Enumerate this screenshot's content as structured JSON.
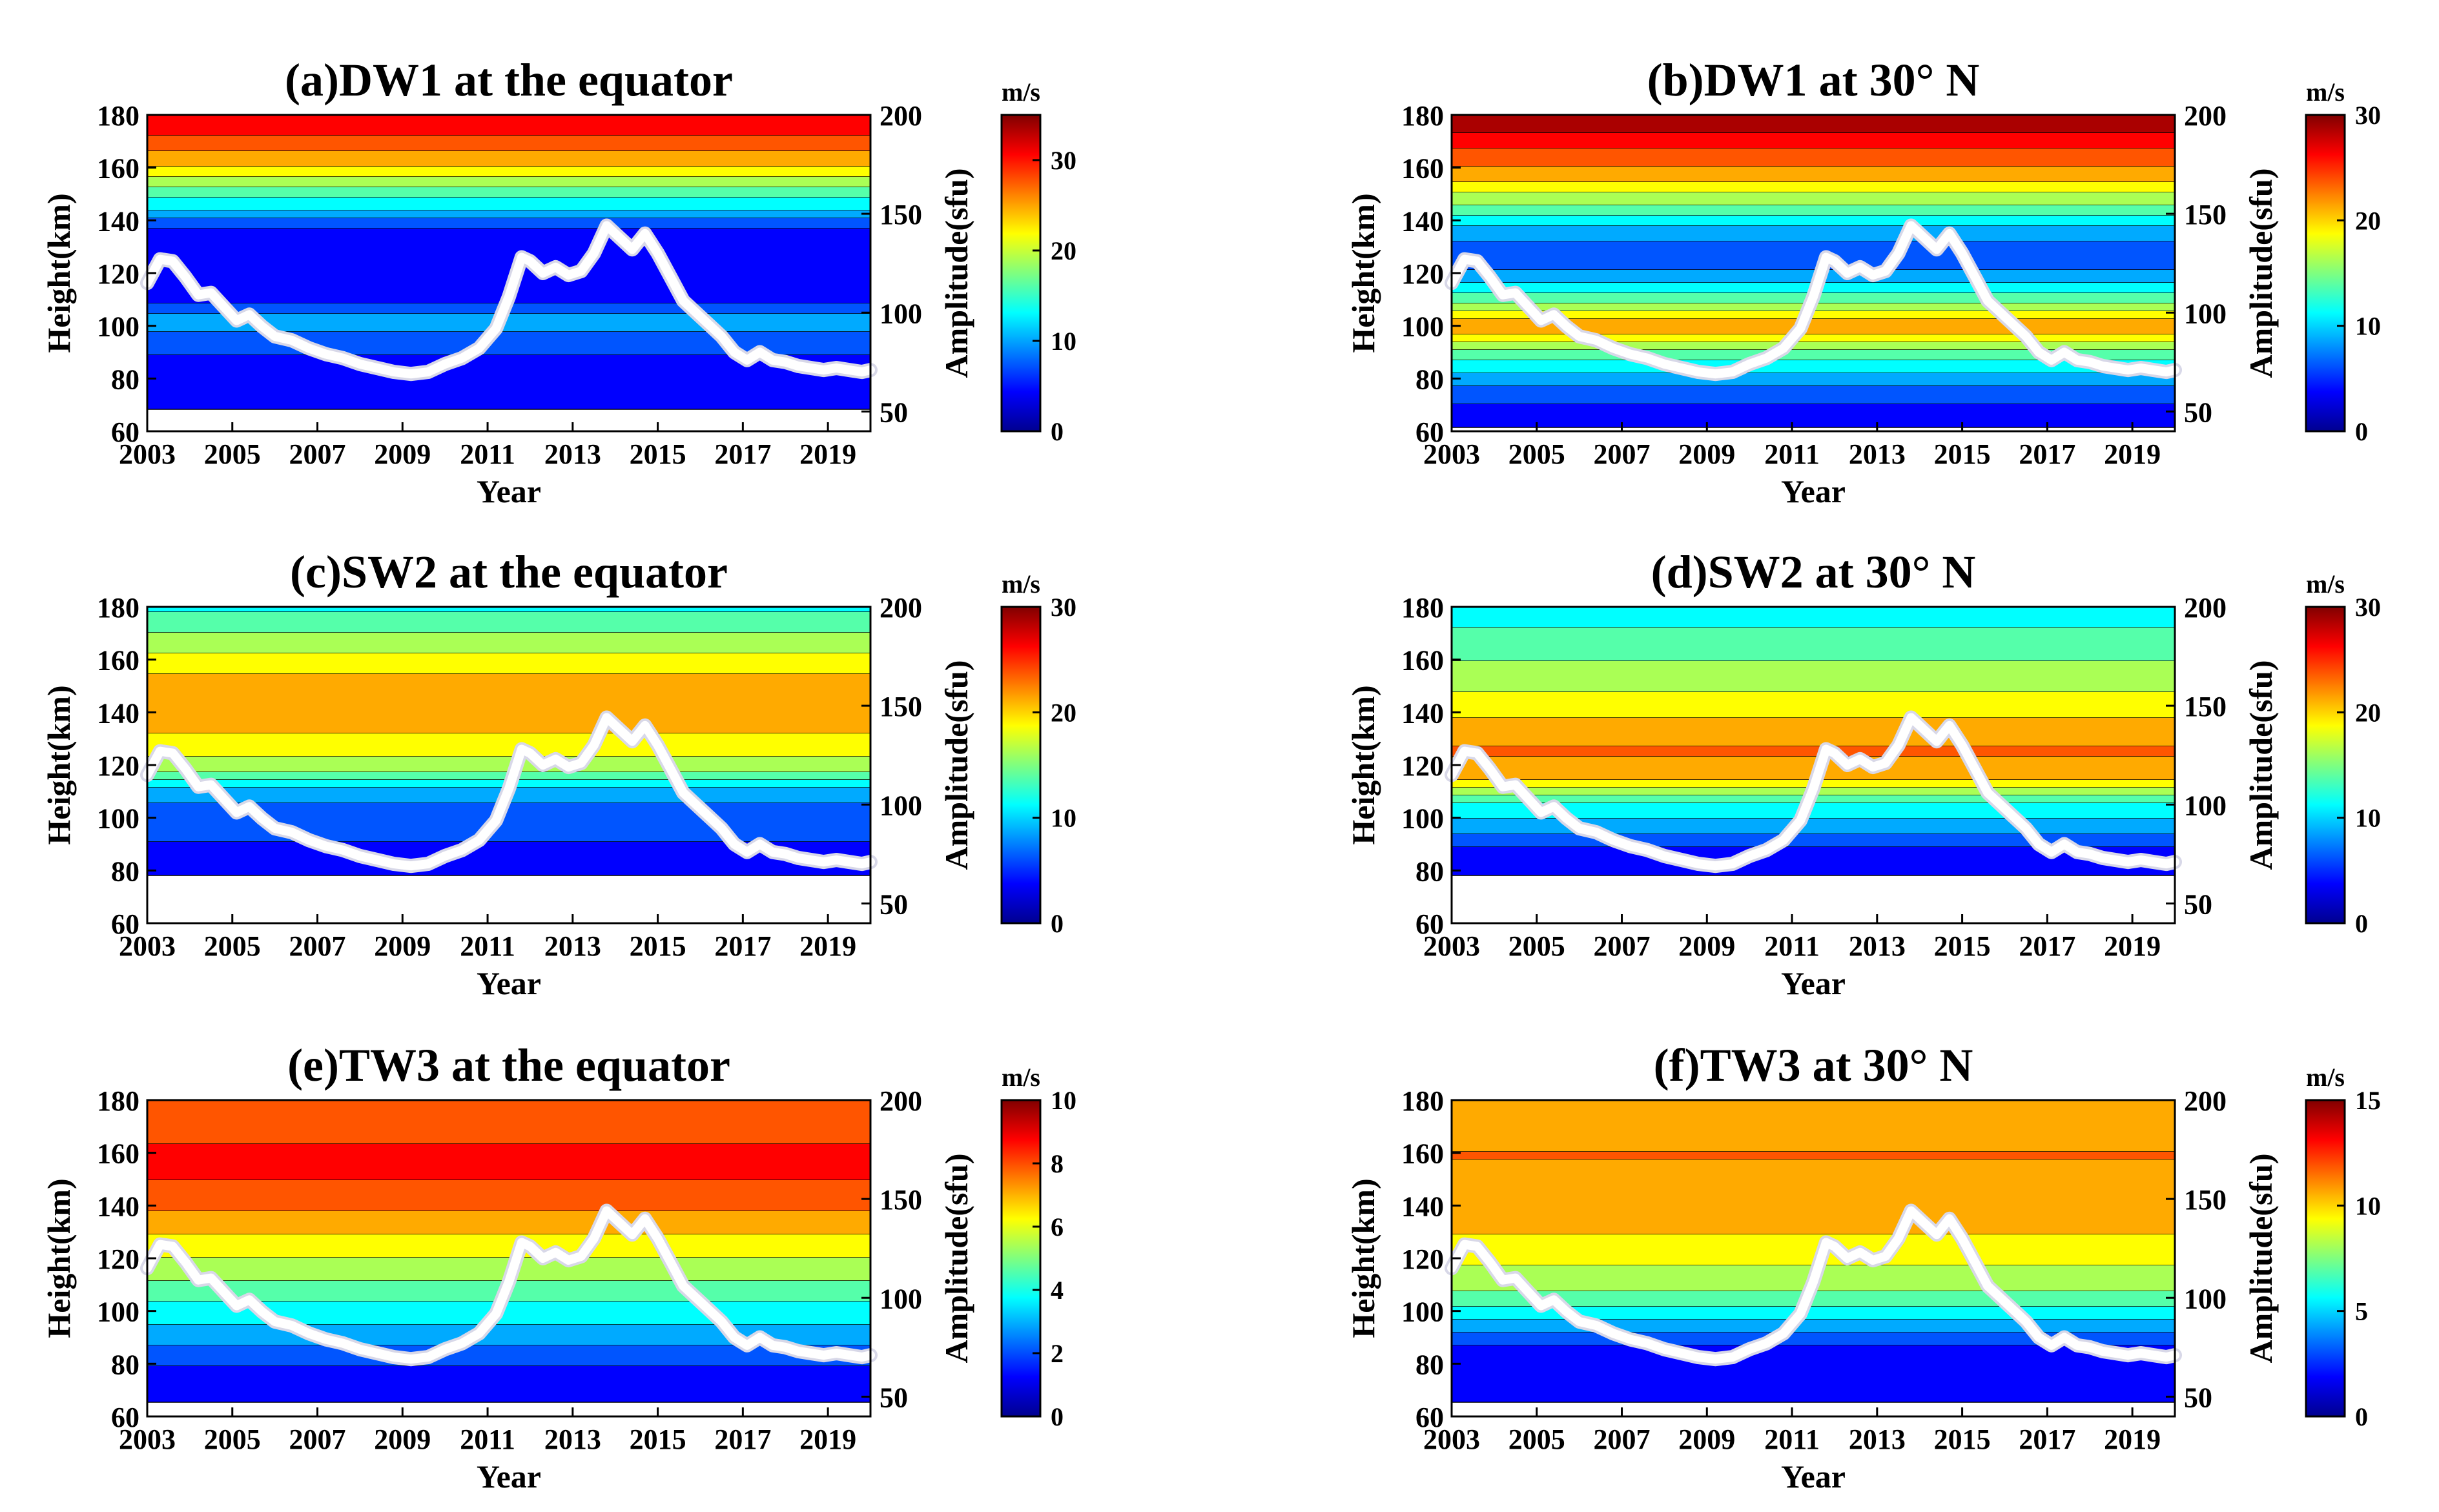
{
  "figure": {
    "year_ticks": [
      2003,
      2005,
      2007,
      2009,
      2011,
      2013,
      2015,
      2017,
      2019
    ],
    "height_ticks": [
      60,
      80,
      100,
      120,
      140,
      160,
      180
    ],
    "sfu_ticks": [
      50,
      100,
      150,
      200
    ],
    "xlabel": "Year",
    "ylabel": "Height(km)",
    "y2label": "Amplitude(sfu)",
    "cbar_unit": "m/s"
  },
  "chart_data": [
    {
      "type": "heatmap",
      "title": "(a)DW1 at the equator",
      "xlim": [
        2003,
        2020
      ],
      "ylim": [
        60,
        180
      ],
      "y2lim": [
        40,
        200
      ],
      "clim": [
        0,
        35
      ],
      "colorbar_ticks": [
        0,
        10,
        20,
        30
      ],
      "colormap": "jet",
      "profile": [
        [
          60,
          2
        ],
        [
          80,
          4
        ],
        [
          95,
          7
        ],
        [
          102,
          11
        ],
        [
          110,
          5
        ],
        [
          125,
          4
        ],
        [
          138,
          6
        ],
        [
          145,
          12
        ],
        [
          155,
          19
        ],
        [
          162,
          24
        ],
        [
          170,
          28
        ],
        [
          180,
          32
        ]
      ],
      "overlay": {
        "name": "F10.7 solar flux",
        "color": "#ffffff"
      }
    },
    {
      "type": "heatmap",
      "title": "(b)DW1 at 30° N",
      "xlim": [
        2003,
        2020
      ],
      "ylim": [
        60,
        180
      ],
      "y2lim": [
        40,
        200
      ],
      "clim": [
        0,
        30
      ],
      "colorbar_ticks": [
        0,
        10,
        20,
        30
      ],
      "colormap": "jet",
      "profile": [
        [
          60,
          2
        ],
        [
          75,
          6
        ],
        [
          90,
          14
        ],
        [
          100,
          22
        ],
        [
          108,
          16
        ],
        [
          118,
          9
        ],
        [
          125,
          6
        ],
        [
          135,
          8
        ],
        [
          145,
          14
        ],
        [
          155,
          20
        ],
        [
          165,
          24
        ],
        [
          172,
          27
        ],
        [
          180,
          29
        ]
      ],
      "overlay": {
        "name": "F10.7 solar flux",
        "color": "#ffffff"
      }
    },
    {
      "type": "heatmap",
      "title": "(c)SW2 at the equator",
      "xlim": [
        2003,
        2020
      ],
      "ylim": [
        60,
        180
      ],
      "y2lim": [
        40,
        200
      ],
      "clim": [
        0,
        30
      ],
      "colorbar_ticks": [
        0,
        10,
        20,
        30
      ],
      "colormap": "jet",
      "profile": [
        [
          60,
          1
        ],
        [
          85,
          3
        ],
        [
          95,
          6
        ],
        [
          110,
          8
        ],
        [
          118,
          15
        ],
        [
          125,
          18
        ],
        [
          140,
          22
        ],
        [
          155,
          20
        ],
        [
          165,
          17
        ],
        [
          180,
          12
        ]
      ],
      "overlay": {
        "name": "F10.7 solar flux",
        "color": "#ffffff"
      }
    },
    {
      "type": "heatmap",
      "title": "(d)SW2 at 30° N",
      "xlim": [
        2003,
        2020
      ],
      "ylim": [
        60,
        180
      ],
      "y2lim": [
        40,
        200
      ],
      "clim": [
        0,
        30
      ],
      "colorbar_ticks": [
        0,
        10,
        20,
        30
      ],
      "colormap": "jet",
      "profile": [
        [
          60,
          1
        ],
        [
          85,
          3
        ],
        [
          95,
          8
        ],
        [
          105,
          12
        ],
        [
          115,
          20
        ],
        [
          125,
          23
        ],
        [
          135,
          21
        ],
        [
          150,
          17
        ],
        [
          165,
          14
        ],
        [
          180,
          11
        ]
      ],
      "overlay": {
        "name": "F10.7 solar flux",
        "color": "#ffffff"
      }
    },
    {
      "type": "heatmap",
      "title": "(e)TW3 at the equator",
      "xlim": [
        2003,
        2020
      ],
      "ylim": [
        60,
        180
      ],
      "y2lim": [
        40,
        200
      ],
      "clim": [
        0,
        10
      ],
      "colorbar_ticks": [
        0,
        2,
        4,
        6,
        8,
        10
      ],
      "colormap": "jet",
      "profile": [
        [
          60,
          0.6
        ],
        [
          75,
          1.2
        ],
        [
          85,
          2.2
        ],
        [
          95,
          3.3
        ],
        [
          105,
          4.3
        ],
        [
          115,
          5.3
        ],
        [
          125,
          6.3
        ],
        [
          135,
          7.2
        ],
        [
          145,
          8.1
        ],
        [
          155,
          8.6
        ],
        [
          165,
          8.3
        ],
        [
          180,
          7.8
        ]
      ],
      "overlay": {
        "name": "F10.7 solar flux",
        "color": "#ffffff"
      }
    },
    {
      "type": "heatmap",
      "title": "(f)TW3 at 30° N",
      "xlim": [
        2003,
        2020
      ],
      "ylim": [
        60,
        180
      ],
      "y2lim": [
        40,
        200
      ],
      "clim": [
        0,
        15
      ],
      "colorbar_ticks": [
        0,
        5,
        10,
        15
      ],
      "colormap": "jet",
      "profile": [
        [
          60,
          1
        ],
        [
          85,
          2
        ],
        [
          95,
          4.5
        ],
        [
          105,
          7
        ],
        [
          115,
          8.5
        ],
        [
          125,
          9.5
        ],
        [
          135,
          10.5
        ],
        [
          150,
          11
        ],
        [
          160,
          11.3
        ],
        [
          180,
          10.5
        ]
      ],
      "overlay": {
        "name": "F10.7 solar flux",
        "color": "#ffffff"
      }
    }
  ],
  "f107_series": {
    "x": [
      2003.0,
      2003.3,
      2003.6,
      2003.9,
      2004.2,
      2004.5,
      2004.8,
      2005.1,
      2005.4,
      2005.7,
      2006.0,
      2006.4,
      2006.8,
      2007.2,
      2007.6,
      2008.0,
      2008.4,
      2008.8,
      2009.2,
      2009.6,
      2010.0,
      2010.4,
      2010.8,
      2011.2,
      2011.5,
      2011.8,
      2012.0,
      2012.3,
      2012.6,
      2012.9,
      2013.2,
      2013.5,
      2013.8,
      2014.1,
      2014.4,
      2014.7,
      2015.0,
      2015.3,
      2015.6,
      2015.9,
      2016.2,
      2016.5,
      2016.8,
      2017.1,
      2017.4,
      2017.7,
      2018.0,
      2018.3,
      2018.6,
      2018.9,
      2019.2,
      2019.5,
      2019.8,
      2020.0
    ],
    "y": [
      115,
      127,
      126,
      118,
      109,
      110,
      103,
      96,
      99,
      93,
      88,
      86,
      82,
      79,
      77,
      74,
      72,
      70,
      69,
      70,
      74,
      77,
      82,
      92,
      108,
      128,
      126,
      120,
      123,
      119,
      121,
      130,
      144,
      138,
      132,
      140,
      130,
      118,
      106,
      100,
      94,
      88,
      80,
      76,
      80,
      76,
      75,
      73,
      72,
      71,
      72,
      71,
      70,
      71
    ]
  }
}
